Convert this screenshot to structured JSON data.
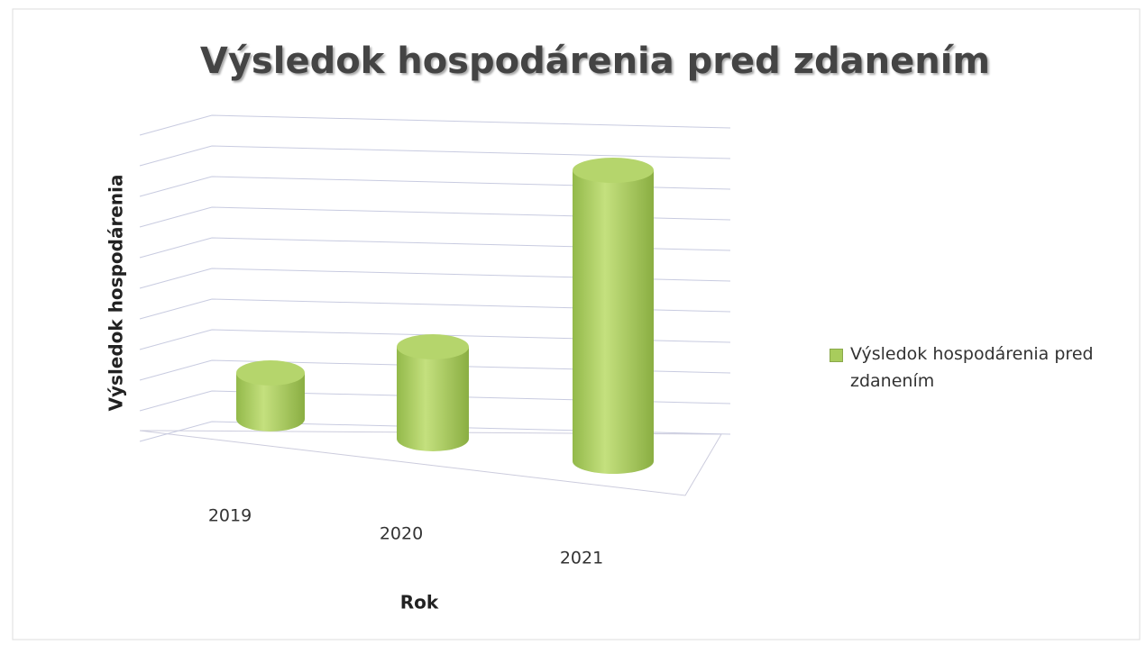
{
  "chart_data": {
    "type": "bar3d",
    "title": "Výsledok hospodárenia pred zdanením",
    "x_label": "Rok",
    "y_label": "Výsledok hospodárenia",
    "categories": [
      "2019",
      "2020",
      "2021"
    ],
    "series": [
      {
        "name": "Výsledok hospodárenia pred zdanením",
        "color": "#a8cc5c",
        "values": [
          1.5,
          3,
          9.5
        ]
      }
    ],
    "ylim": [
      0,
      10
    ],
    "yticks": [
      0,
      1,
      2,
      3,
      4,
      5,
      6,
      7,
      8,
      9,
      10
    ],
    "grid": true,
    "legend": "right"
  }
}
